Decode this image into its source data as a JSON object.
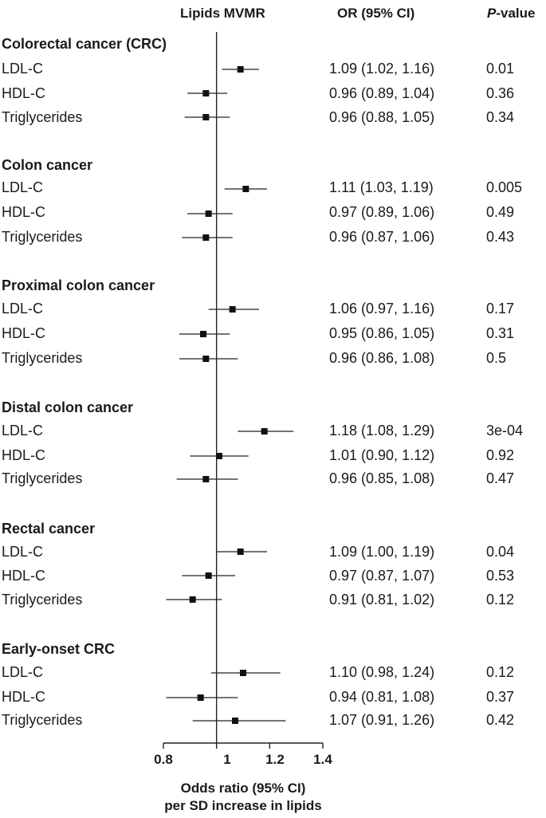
{
  "headers": {
    "plot": "Lipids MVMR",
    "or": "OR (95% CI)",
    "p_italic": "P",
    "p_rest": "-value"
  },
  "xaxis": {
    "ticks": [
      "0.8",
      "1",
      "1.2",
      "1.4"
    ],
    "label_line1": "Odds ratio (95% CI)",
    "label_line2": "per SD increase in lipids"
  },
  "groups": [
    {
      "title": "Colorectal cancer (CRC)",
      "rows": [
        {
          "label": "LDL-C",
          "or_text": "1.09 (1.02, 1.16)",
          "p": "0.01"
        },
        {
          "label": "HDL-C",
          "or_text": "0.96 (0.89, 1.04)",
          "p": "0.36"
        },
        {
          "label": "Triglycerides",
          "or_text": "0.96 (0.88, 1.05)",
          "p": "0.34"
        }
      ]
    },
    {
      "title": "Colon cancer",
      "rows": [
        {
          "label": "LDL-C",
          "or_text": "1.11 (1.03, 1.19)",
          "p": "0.005"
        },
        {
          "label": "HDL-C",
          "or_text": "0.97 (0.89, 1.06)",
          "p": "0.49"
        },
        {
          "label": "Triglycerides",
          "or_text": "0.96 (0.87, 1.06)",
          "p": "0.43"
        }
      ]
    },
    {
      "title": "Proximal colon cancer",
      "rows": [
        {
          "label": "LDL-C",
          "or_text": "1.06 (0.97, 1.16)",
          "p": "0.17"
        },
        {
          "label": "HDL-C",
          "or_text": "0.95 (0.86, 1.05)",
          "p": "0.31"
        },
        {
          "label": "Triglycerides",
          "or_text": "0.96 (0.86, 1.08)",
          "p": "0.5"
        }
      ]
    },
    {
      "title": "Distal colon cancer",
      "rows": [
        {
          "label": "LDL-C",
          "or_text": "1.18 (1.08, 1.29)",
          "p": "3e-04"
        },
        {
          "label": "HDL-C",
          "or_text": "1.01 (0.90, 1.12)",
          "p": "0.92"
        },
        {
          "label": "Triglycerides",
          "or_text": "0.96 (0.85, 1.08)",
          "p": "0.47"
        }
      ]
    },
    {
      "title": "Rectal cancer",
      "rows": [
        {
          "label": "LDL-C",
          "or_text": "1.09 (1.00, 1.19)",
          "p": "0.04"
        },
        {
          "label": "HDL-C",
          "or_text": "0.97 (0.87, 1.07)",
          "p": "0.53"
        },
        {
          "label": "Triglycerides",
          "or_text": "0.91 (0.81, 1.02)",
          "p": "0.12"
        }
      ]
    },
    {
      "title": "Early-onset CRC",
      "rows": [
        {
          "label": "LDL-C",
          "or_text": "1.10 (0.98, 1.24)",
          "p": "0.12"
        },
        {
          "label": "HDL-C",
          "or_text": "0.94 (0.81, 1.08)",
          "p": "0.37"
        },
        {
          "label": "Triglycerides",
          "or_text": "1.07 (0.91, 1.26)",
          "p": "0.42"
        }
      ]
    }
  ],
  "chart_data": {
    "type": "scatter",
    "subtype": "forest",
    "title": "Lipids MVMR",
    "xlabel": "Odds ratio (95% CI) per SD increase in lipids",
    "xlim": [
      0.8,
      1.4
    ],
    "xticks": [
      0.8,
      1.0,
      1.2,
      1.4
    ],
    "reference_line": 1.0,
    "series": [
      {
        "name": "Colorectal cancer (CRC)",
        "points": [
          {
            "label": "LDL-C",
            "or": 1.09,
            "lo": 1.02,
            "hi": 1.16
          },
          {
            "label": "HDL-C",
            "or": 0.96,
            "lo": 0.89,
            "hi": 1.04
          },
          {
            "label": "Triglycerides",
            "or": 0.96,
            "lo": 0.88,
            "hi": 1.05
          }
        ]
      },
      {
        "name": "Colon cancer",
        "points": [
          {
            "label": "LDL-C",
            "or": 1.11,
            "lo": 1.03,
            "hi": 1.19
          },
          {
            "label": "HDL-C",
            "or": 0.97,
            "lo": 0.89,
            "hi": 1.06
          },
          {
            "label": "Triglycerides",
            "or": 0.96,
            "lo": 0.87,
            "hi": 1.06
          }
        ]
      },
      {
        "name": "Proximal colon cancer",
        "points": [
          {
            "label": "LDL-C",
            "or": 1.06,
            "lo": 0.97,
            "hi": 1.16
          },
          {
            "label": "HDL-C",
            "or": 0.95,
            "lo": 0.86,
            "hi": 1.05
          },
          {
            "label": "Triglycerides",
            "or": 0.96,
            "lo": 0.86,
            "hi": 1.08
          }
        ]
      },
      {
        "name": "Distal colon cancer",
        "points": [
          {
            "label": "LDL-C",
            "or": 1.18,
            "lo": 1.08,
            "hi": 1.29
          },
          {
            "label": "HDL-C",
            "or": 1.01,
            "lo": 0.9,
            "hi": 1.12
          },
          {
            "label": "Triglycerides",
            "or": 0.96,
            "lo": 0.85,
            "hi": 1.08
          }
        ]
      },
      {
        "name": "Rectal cancer",
        "points": [
          {
            "label": "LDL-C",
            "or": 1.09,
            "lo": 1.0,
            "hi": 1.19
          },
          {
            "label": "HDL-C",
            "or": 0.97,
            "lo": 0.87,
            "hi": 1.07
          },
          {
            "label": "Triglycerides",
            "or": 0.91,
            "lo": 0.81,
            "hi": 1.02
          }
        ]
      },
      {
        "name": "Early-onset CRC",
        "points": [
          {
            "label": "LDL-C",
            "or": 1.1,
            "lo": 0.98,
            "hi": 1.24
          },
          {
            "label": "HDL-C",
            "or": 0.94,
            "lo": 0.81,
            "hi": 1.08
          },
          {
            "label": "Triglycerides",
            "or": 1.07,
            "lo": 0.91,
            "hi": 1.26
          }
        ]
      }
    ]
  }
}
